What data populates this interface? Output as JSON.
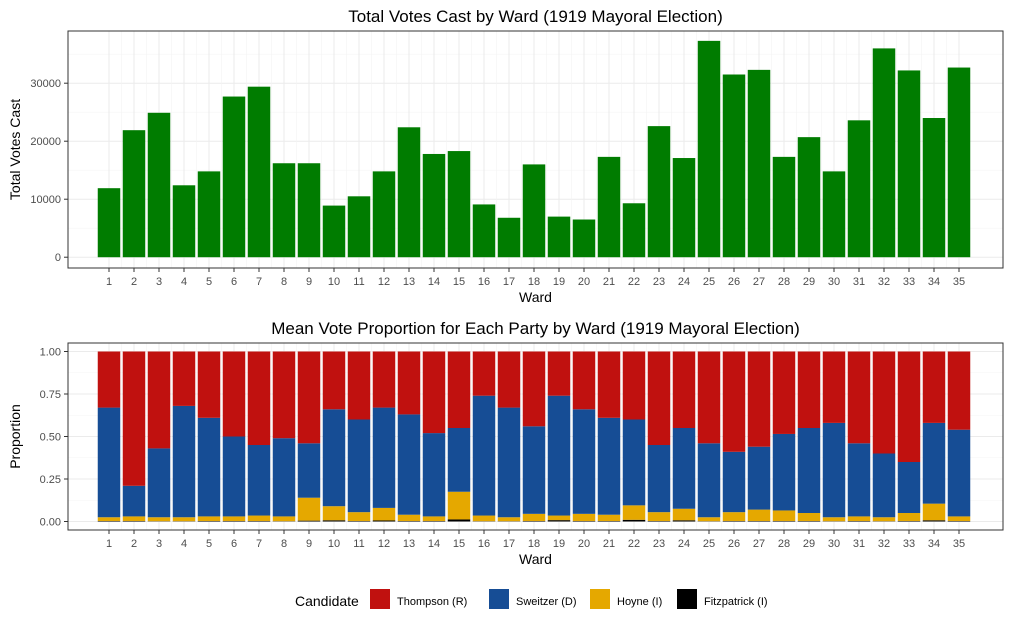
{
  "chart_data": [
    {
      "type": "bar",
      "title": "Total Votes Cast by Ward (1919 Mayoral Election)",
      "xlabel": "Ward",
      "ylabel": "Total Votes Cast",
      "categories": [
        "1",
        "2",
        "3",
        "4",
        "5",
        "6",
        "7",
        "8",
        "9",
        "10",
        "11",
        "12",
        "13",
        "14",
        "15",
        "16",
        "17",
        "18",
        "19",
        "20",
        "21",
        "22",
        "23",
        "24",
        "25",
        "26",
        "27",
        "28",
        "29",
        "30",
        "31",
        "32",
        "33",
        "34",
        "35"
      ],
      "values": [
        11900,
        21900,
        24900,
        12400,
        14800,
        27700,
        29400,
        16200,
        16200,
        8900,
        10500,
        14800,
        22400,
        17800,
        18300,
        9100,
        6800,
        16000,
        7000,
        6500,
        17300,
        9300,
        22600,
        17100,
        37300,
        31500,
        32300,
        17300,
        20700,
        14800,
        23600,
        36000,
        32200,
        24000,
        32700
      ],
      "ylim": [
        -1860,
        39000
      ],
      "yticks": [
        0,
        10000,
        20000,
        30000
      ],
      "ytick_labels": [
        "0",
        "10000",
        "20000",
        "30000"
      ],
      "bar_color": "#007c00",
      "grid": true
    },
    {
      "type": "bar",
      "stacked": true,
      "title": "Mean Vote Proportion for Each Party by Ward (1919 Mayoral Election)",
      "xlabel": "Ward",
      "ylabel": "Proportion",
      "categories": [
        "1",
        "2",
        "3",
        "4",
        "5",
        "6",
        "7",
        "8",
        "9",
        "10",
        "11",
        "12",
        "13",
        "14",
        "15",
        "16",
        "17",
        "18",
        "19",
        "20",
        "21",
        "22",
        "23",
        "24",
        "25",
        "26",
        "27",
        "28",
        "29",
        "30",
        "31",
        "32",
        "33",
        "34",
        "35"
      ],
      "ylim": [
        -0.05,
        1.05
      ],
      "yticks": [
        0,
        0.25,
        0.5,
        0.75,
        1.0
      ],
      "ytick_labels": [
        "0.00",
        "0.25",
        "0.50",
        "0.75",
        "1.00"
      ],
      "grid": true,
      "series": [
        {
          "name": "Fitzpatrick (I)",
          "color": "#000000",
          "values": [
            0.003,
            0.003,
            0.002,
            0.002,
            0.003,
            0.003,
            0.003,
            0.002,
            0.005,
            0.007,
            0.003,
            0.006,
            0.003,
            0.003,
            0.012,
            0.002,
            0.002,
            0.003,
            0.008,
            0.003,
            0.003,
            0.01,
            0.003,
            0.007,
            0.002,
            0.003,
            0.003,
            0.003,
            0.003,
            0.002,
            0.003,
            0.002,
            0.003,
            0.007,
            0.003
          ]
        },
        {
          "name": "Hoyne (I)",
          "color": "#e5a800",
          "values": [
            0.022,
            0.027,
            0.023,
            0.023,
            0.027,
            0.027,
            0.032,
            0.028,
            0.135,
            0.083,
            0.052,
            0.074,
            0.037,
            0.027,
            0.163,
            0.033,
            0.023,
            0.042,
            0.027,
            0.042,
            0.037,
            0.085,
            0.052,
            0.068,
            0.023,
            0.052,
            0.067,
            0.062,
            0.047,
            0.023,
            0.027,
            0.023,
            0.047,
            0.098,
            0.027
          ]
        },
        {
          "name": "Sweitzer (D)",
          "color": "#164d95",
          "values": [
            0.645,
            0.18,
            0.405,
            0.655,
            0.58,
            0.47,
            0.415,
            0.46,
            0.32,
            0.57,
            0.545,
            0.59,
            0.59,
            0.49,
            0.375,
            0.705,
            0.645,
            0.515,
            0.705,
            0.615,
            0.57,
            0.505,
            0.395,
            0.475,
            0.435,
            0.355,
            0.37,
            0.45,
            0.5,
            0.555,
            0.43,
            0.375,
            0.3,
            0.475,
            0.51
          ]
        },
        {
          "name": "Thompson (R)",
          "color": "#c0110f",
          "values": [
            0.33,
            0.79,
            0.57,
            0.32,
            0.39,
            0.5,
            0.55,
            0.51,
            0.54,
            0.34,
            0.4,
            0.33,
            0.37,
            0.48,
            0.45,
            0.26,
            0.33,
            0.44,
            0.26,
            0.34,
            0.39,
            0.4,
            0.55,
            0.45,
            0.54,
            0.59,
            0.56,
            0.485,
            0.45,
            0.42,
            0.54,
            0.6,
            0.65,
            0.42,
            0.46
          ]
        }
      ]
    }
  ],
  "legend": {
    "title": "Candidate",
    "placement": "bottom",
    "items": [
      {
        "label": "Thompson (R)",
        "color": "#c0110f"
      },
      {
        "label": "Sweitzer (D)",
        "color": "#164d95"
      },
      {
        "label": "Hoyne (I)",
        "color": "#e5a800"
      },
      {
        "label": "Fitzpatrick (I)",
        "color": "#000000"
      }
    ]
  }
}
